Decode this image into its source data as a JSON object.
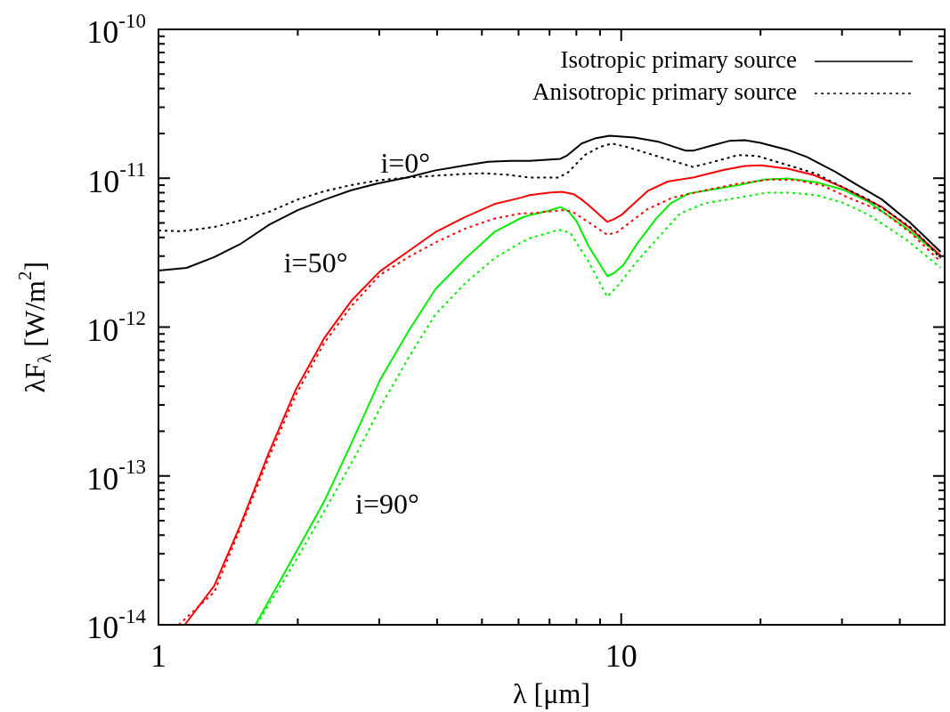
{
  "chart_data": {
    "type": "line",
    "xlabel": "λ [μm]",
    "ylabel": "λF$_{λ}$ [W/m$^{2}$]",
    "log": "xy",
    "grid": false,
    "marker": "none",
    "legend": "top right",
    "xlim": [
      1,
      50
    ],
    "ylim": [
      1e-14,
      1e-10
    ],
    "xticks": [
      1,
      {
        "value": 2,
        "label": null
      },
      {
        "value": 3,
        "label": null
      },
      {
        "value": 4,
        "label": null
      },
      {
        "value": 5,
        "label": null
      },
      {
        "value": 6,
        "label": null
      },
      {
        "value": 7,
        "label": null
      },
      {
        "value": 8,
        "label": null
      },
      {
        "value": 9,
        "label": null
      },
      10,
      {
        "value": 20,
        "label": null
      },
      {
        "value": 30,
        "label": null
      },
      {
        "value": 40,
        "label": null
      }
    ],
    "yticks": [
      {
        "value": 1e-14,
        "label": "10$^{-14}$"
      },
      {
        "value": 2e-14,
        "label": null
      },
      {
        "value": 3e-14,
        "label": null
      },
      {
        "value": 4e-14,
        "label": null
      },
      {
        "value": 5e-14,
        "label": null
      },
      {
        "value": 6e-14,
        "label": null
      },
      {
        "value": 7e-14,
        "label": null
      },
      {
        "value": 8e-14,
        "label": null
      },
      {
        "value": 9e-14,
        "label": null
      },
      {
        "value": 1e-13,
        "label": "10$^{-13}$"
      },
      {
        "value": 2e-13,
        "label": null
      },
      {
        "value": 3e-13,
        "label": null
      },
      {
        "value": 4e-13,
        "label": null
      },
      {
        "value": 5e-13,
        "label": null
      },
      {
        "value": 6e-13,
        "label": null
      },
      {
        "value": 7e-13,
        "label": null
      },
      {
        "value": 8e-13,
        "label": null
      },
      {
        "value": 9e-13,
        "label": null
      },
      {
        "value": 1e-12,
        "label": "10$^{-12}$"
      },
      {
        "value": 2e-12,
        "label": null
      },
      {
        "value": 3e-12,
        "label": null
      },
      {
        "value": 4e-12,
        "label": null
      },
      {
        "value": 5e-12,
        "label": null
      },
      {
        "value": 6e-12,
        "label": null
      },
      {
        "value": 7e-12,
        "label": null
      },
      {
        "value": 8e-12,
        "label": null
      },
      {
        "value": 9e-12,
        "label": null
      },
      {
        "value": 1e-11,
        "label": "10$^{-11}$"
      },
      {
        "value": 2e-11,
        "label": null
      },
      {
        "value": 3e-11,
        "label": null
      },
      {
        "value": 4e-11,
        "label": null
      },
      {
        "value": 5e-11,
        "label": null
      },
      {
        "value": 6e-11,
        "label": null
      },
      {
        "value": 7e-11,
        "label": null
      },
      {
        "value": 8e-11,
        "label": null
      },
      {
        "value": 9e-11,
        "label": null
      },
      {
        "value": 1e-10,
        "label": "10$^{-10}$"
      }
    ],
    "series": [
      {
        "name": "Isotropic primary source",
        "color": "#000000",
        "line_style": "solid",
        "x": [
          1,
          1.15,
          1.32,
          1.5,
          1.74,
          2,
          2.29,
          2.61,
          2.97,
          3.44,
          3.97,
          4.61,
          5.16,
          5.76,
          6.34,
          7.39,
          7.66,
          8.21,
          8.77,
          9.44,
          10.67,
          12.1,
          13.8,
          14.3,
          15.7,
          17.1,
          18.5,
          20,
          22.9,
          25.2,
          29.1,
          32,
          36.6,
          42.2,
          49
        ],
        "values": [
          2.4e-12,
          2.5e-12,
          2.95e-12,
          3.6e-12,
          4.9e-12,
          6.1e-12,
          7.2e-12,
          8.3e-12,
          9.2e-12,
          1.01e-11,
          1.13e-11,
          1.22e-11,
          1.29e-11,
          1.31e-11,
          1.31e-11,
          1.35e-11,
          1.43e-11,
          1.71e-11,
          1.85e-11,
          1.93e-11,
          1.88e-11,
          1.75e-11,
          1.53e-11,
          1.53e-11,
          1.66e-11,
          1.78e-11,
          1.8e-11,
          1.73e-11,
          1.55e-11,
          1.39e-11,
          1.1e-11,
          9.2e-12,
          7.2e-12,
          5e-12,
          3.2e-12
        ]
      },
      {
        "name": "Anisotropic primary source",
        "color": "#000000",
        "line_style": "dotted",
        "x": [
          1,
          1.12,
          1.32,
          1.5,
          1.74,
          2,
          2.29,
          2.61,
          3.01,
          3.44,
          3.97,
          4.61,
          5.07,
          5.76,
          6.34,
          7.33,
          7.69,
          8.34,
          8.98,
          9.55,
          10.3,
          12.1,
          14.3,
          15.7,
          17.9,
          19.7,
          23.2,
          26.4,
          30.1,
          34.2,
          37.6,
          42.9,
          49
        ],
        "values": [
          4.46e-12,
          4.4e-12,
          4.7e-12,
          5.2e-12,
          5.97e-12,
          7.2e-12,
          8.2e-12,
          9e-12,
          9.7e-12,
          1.01e-11,
          1.04e-11,
          1.07e-11,
          1.08e-11,
          1.05e-11,
          1.01e-11,
          1.01e-11,
          1.1e-11,
          1.43e-11,
          1.62e-11,
          1.71e-11,
          1.62e-11,
          1.39e-11,
          1.19e-11,
          1.28e-11,
          1.43e-11,
          1.41e-11,
          1.21e-11,
          1.07e-11,
          8.7e-12,
          7.2e-12,
          6e-12,
          4.5e-12,
          2.9e-12
        ]
      },
      {
        "color": "#ff0000",
        "line_style": "solid",
        "x": [
          1.14,
          1.32,
          1.5,
          1.73,
          1.98,
          2.28,
          2.61,
          3.01,
          3.5,
          3.97,
          4.61,
          5.32,
          6.07,
          6.34,
          6.98,
          7.45,
          7.9,
          8.21,
          8.5,
          9.33,
          9.64,
          10,
          11.4,
          12.6,
          14.3,
          16.7,
          18.5,
          20,
          22.9,
          26.1,
          30.1,
          36.6,
          42.2,
          49
        ],
        "values": [
          1e-14,
          1.83e-14,
          4.6e-14,
          1.42e-13,
          3.8e-13,
          8.4e-13,
          1.5e-12,
          2.37e-12,
          3.3e-12,
          4.35e-12,
          5.5e-12,
          6.7e-12,
          7.4e-12,
          7.7e-12,
          8e-12,
          8.1e-12,
          7.8e-12,
          7.2e-12,
          6.6e-12,
          5.1e-12,
          5.3e-12,
          5.65e-12,
          8.2e-12,
          9.5e-12,
          1.01e-11,
          1.14e-11,
          1.21e-11,
          1.22e-11,
          1.16e-11,
          1.05e-11,
          8.7e-12,
          6.4e-12,
          4.6e-12,
          3.03e-12
        ]
      },
      {
        "color": "#ff0000",
        "line_style": "dotted",
        "x": [
          1.106,
          1.32,
          1.5,
          1.73,
          1.98,
          2.28,
          2.61,
          3.01,
          3.5,
          3.97,
          4.61,
          5.32,
          6.07,
          6.34,
          7.45,
          7.82,
          8.5,
          9.33,
          9.81,
          11.4,
          12.9,
          15.2,
          17.9,
          21,
          24,
          27.3,
          31,
          36.6,
          42.2,
          49
        ],
        "values": [
          1e-14,
          1.66e-14,
          4.4e-14,
          1.32e-13,
          3.5e-13,
          7.8e-13,
          1.38e-12,
          2.24e-12,
          3e-12,
          3.7e-12,
          4.6e-12,
          5.35e-12,
          5.8e-12,
          5.8e-12,
          6.1e-12,
          6e-12,
          5.06e-12,
          4.17e-12,
          4.35e-12,
          6.2e-12,
          7.4e-12,
          8.3e-12,
          9.2e-12,
          9.8e-12,
          9.7e-12,
          8.9e-12,
          7.4e-12,
          6e-12,
          4.3e-12,
          2.75e-12
        ]
      },
      {
        "color": "#00ee00",
        "line_style": "solid",
        "x": [
          1.62,
          1.98,
          2.29,
          2.61,
          3.01,
          3.47,
          3.97,
          4.61,
          5.32,
          6.07,
          6.34,
          6.98,
          7.39,
          7.69,
          8.03,
          8.5,
          9.33,
          9.64,
          10.1,
          10.8,
          11.9,
          12.8,
          14,
          15.7,
          17.9,
          20.4,
          22.9,
          26.4,
          30.1,
          34.2,
          41.4,
          49
        ],
        "values": [
          1e-14,
          3.05e-14,
          6.9e-14,
          1.65e-13,
          4.4e-13,
          9.4e-13,
          1.8e-12,
          2.9e-12,
          4.35e-12,
          5.4e-12,
          5.65e-12,
          6.05e-12,
          6.4e-12,
          6e-12,
          5.06e-12,
          3.5e-12,
          2.2e-12,
          2.3e-12,
          2.6e-12,
          3.6e-12,
          5.35e-12,
          6.8e-12,
          7.9e-12,
          8.4e-12,
          9e-12,
          9.8e-12,
          9.95e-12,
          9.4e-12,
          8.4e-12,
          6.95e-12,
          4.6e-12,
          3e-12
        ]
      },
      {
        "color": "#00ee00",
        "line_style": "dotted",
        "x": [
          1.63,
          1.98,
          2.29,
          2.65,
          3.07,
          3.5,
          3.97,
          4.61,
          5.32,
          6.07,
          6.34,
          7.33,
          7.76,
          8.09,
          8.5,
          9.33,
          9.87,
          10.8,
          11.9,
          13.4,
          15.2,
          17.9,
          20.7,
          23.2,
          26.4,
          30.1,
          34.2,
          41.4,
          49
        ],
        "values": [
          1e-14,
          2.7e-14,
          5.9e-14,
          1.32e-13,
          3.2e-13,
          6.5e-13,
          1.22e-12,
          1.98e-12,
          2.9e-12,
          3.7e-12,
          3.95e-12,
          4.5e-12,
          4.3e-12,
          3.5e-12,
          2.75e-12,
          1.6e-12,
          1.92e-12,
          2.75e-12,
          3.85e-12,
          5.8e-12,
          6.8e-12,
          7.4e-12,
          8e-12,
          8e-12,
          7.7e-12,
          6.85e-12,
          5.7e-12,
          3.85e-12,
          2.5e-12
        ]
      }
    ],
    "annotations": [
      "i=0°",
      "i=50°",
      "i=90°"
    ]
  }
}
